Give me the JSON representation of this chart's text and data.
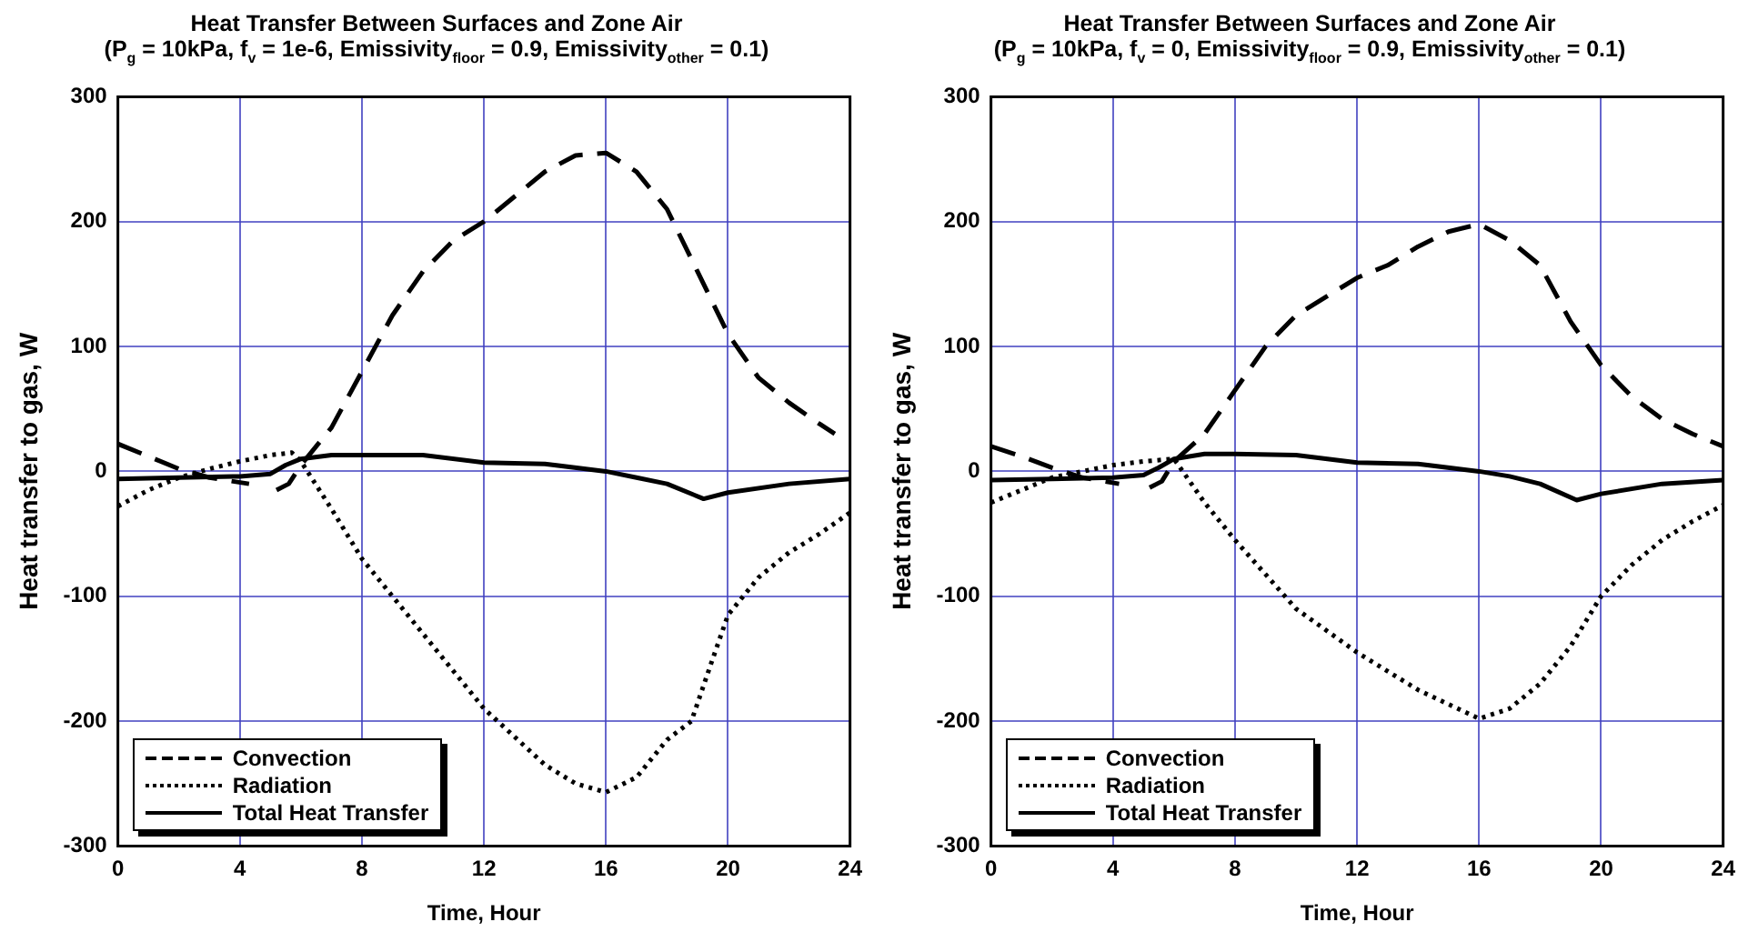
{
  "chart_data": [
    {
      "type": "line",
      "title": "Heat Transfer Between Surfaces and Zone Air",
      "subtitle": "(P$_{g}$ = 10kPa, f$_{v}$ = 1e-6, Emissivity$_{floor}$ = 0.9, Emissivity$_{other}$ = 0.1)",
      "xlabel": "Time, Hour",
      "ylabel": "Heat transfer to gas, W",
      "xlim": [
        0,
        24
      ],
      "xticks": [
        0,
        4,
        8,
        12,
        16,
        20,
        24
      ],
      "ylim": [
        -300,
        300
      ],
      "yticks": [
        -300,
        -200,
        -100,
        0,
        100,
        200,
        300
      ],
      "grid": true,
      "legend": "bottom left",
      "marker": "none",
      "series": [
        {
          "name": "Convection",
          "color": "#000000",
          "line_style": "dashed",
          "x": [
            0,
            1,
            2,
            3,
            4.3,
            4.8,
            5.2,
            5.6,
            6,
            7,
            8,
            9,
            10,
            11,
            12,
            13,
            14,
            15,
            16,
            17,
            18,
            19,
            20,
            21,
            22,
            23,
            23.5
          ],
          "values": [
            22,
            12,
            2,
            -5,
            -10,
            null,
            -15,
            -10,
            5,
            35,
            80,
            125,
            160,
            185,
            200,
            220,
            240,
            253,
            255,
            240,
            210,
            160,
            110,
            75,
            55,
            38,
            30
          ]
        },
        {
          "name": "Radiation",
          "color": "#000000",
          "line_style": "dotted",
          "x": [
            0,
            1,
            2,
            3,
            4,
            5,
            5.7,
            6,
            7,
            8,
            10,
            12,
            14,
            15,
            16,
            17,
            18,
            18.8,
            19.5,
            20,
            21,
            22,
            23,
            24
          ],
          "values": [
            -28,
            -15,
            -5,
            2,
            8,
            13,
            15,
            8,
            -30,
            -70,
            -130,
            -190,
            -235,
            -250,
            -257,
            -245,
            -215,
            -200,
            -150,
            -115,
            -85,
            -65,
            -50,
            -33
          ]
        },
        {
          "name": "Total Heat Transfer",
          "color": "#000000",
          "line_style": "solid",
          "x": [
            0,
            2,
            4,
            5,
            5.5,
            6,
            7,
            8,
            10,
            12,
            14,
            16,
            17,
            18,
            19.2,
            20,
            22,
            24
          ],
          "values": [
            -6,
            -5,
            -4,
            -2,
            5,
            10,
            13,
            13,
            13,
            7,
            6,
            0,
            -5,
            -10,
            -22,
            -17,
            -10,
            -6
          ]
        }
      ]
    },
    {
      "type": "line",
      "title": "Heat Transfer Between Surfaces and Zone Air",
      "subtitle": "(P$_{g}$ = 10kPa, f$_{v}$ = 0, Emissivity$_{floor}$ = 0.9, Emissivity$_{other}$ = 0.1)",
      "xlabel": "Time, Hour",
      "ylabel": "Heat transfer to gas, W",
      "xlim": [
        0,
        24
      ],
      "xticks": [
        0,
        4,
        8,
        12,
        16,
        20,
        24
      ],
      "ylim": [
        -300,
        300
      ],
      "yticks": [
        -300,
        -200,
        -100,
        0,
        100,
        200,
        300
      ],
      "grid": true,
      "legend": "bottom left",
      "marker": "none",
      "series": [
        {
          "name": "Convection",
          "color": "#000000",
          "line_style": "dashed",
          "x": [
            0,
            1,
            2,
            3,
            4.2,
            4.7,
            5.2,
            5.6,
            6,
            7,
            8,
            9,
            10,
            11,
            12,
            13,
            14,
            15,
            16,
            17,
            18,
            19,
            20,
            21,
            22,
            23,
            24
          ],
          "values": [
            20,
            12,
            3,
            -5,
            -10,
            null,
            -13,
            -8,
            8,
            30,
            65,
            100,
            125,
            140,
            155,
            165,
            180,
            192,
            198,
            185,
            165,
            120,
            85,
            60,
            42,
            30,
            20
          ]
        },
        {
          "name": "Radiation",
          "color": "#000000",
          "line_style": "dotted",
          "x": [
            0,
            1,
            2,
            3,
            4,
            5,
            6,
            7,
            8,
            10,
            12,
            14,
            16,
            17,
            18,
            19,
            20,
            21,
            22,
            23,
            24
          ],
          "values": [
            -25,
            -15,
            -5,
            0,
            5,
            8,
            10,
            -25,
            -55,
            -110,
            -145,
            -175,
            -198,
            -190,
            -170,
            -140,
            -100,
            -75,
            -55,
            -40,
            -27
          ]
        },
        {
          "name": "Total Heat Transfer",
          "color": "#000000",
          "line_style": "solid",
          "x": [
            0,
            2,
            4,
            5,
            5.5,
            6,
            7,
            8,
            10,
            12,
            14,
            16,
            17,
            18,
            19.2,
            20,
            22,
            24
          ],
          "values": [
            -7,
            -6,
            -5,
            -3,
            3,
            10,
            14,
            14,
            13,
            7,
            6,
            0,
            -4,
            -10,
            -23,
            -18,
            -10,
            -7
          ]
        }
      ]
    }
  ]
}
